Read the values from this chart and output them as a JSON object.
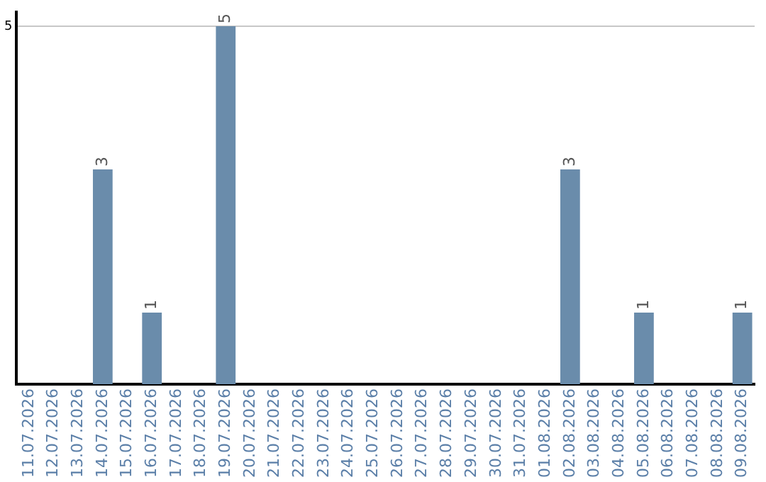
{
  "chart_data": {
    "type": "bar",
    "categories": [
      "11.07.2026",
      "12.07.2026",
      "13.07.2026",
      "14.07.2026",
      "15.07.2026",
      "16.07.2026",
      "17.07.2026",
      "18.07.2026",
      "19.07.2026",
      "20.07.2026",
      "21.07.2026",
      "22.07.2026",
      "23.07.2026",
      "24.07.2026",
      "25.07.2026",
      "26.07.2026",
      "27.07.2026",
      "28.07.2026",
      "29.07.2026",
      "30.07.2026",
      "31.07.2026",
      "01.08.2026",
      "02.08.2026",
      "03.08.2026",
      "04.08.2026",
      "05.08.2026",
      "06.08.2026",
      "07.08.2026",
      "08.08.2026",
      "09.08.2026"
    ],
    "values": [
      0,
      0,
      0,
      3,
      0,
      1,
      0,
      0,
      5,
      0,
      0,
      0,
      0,
      0,
      0,
      0,
      0,
      0,
      0,
      0,
      0,
      0,
      3,
      0,
      0,
      1,
      0,
      0,
      0,
      1
    ],
    "value_labels": [
      null,
      null,
      null,
      "3",
      null,
      "1",
      null,
      null,
      "5",
      null,
      null,
      null,
      null,
      null,
      null,
      null,
      null,
      null,
      null,
      null,
      null,
      null,
      "3",
      null,
      null,
      "1",
      null,
      null,
      null,
      "1"
    ],
    "color": "#6a8cab",
    "ylim": [
      0,
      5.2
    ],
    "yticks": [
      5
    ],
    "grid": "y",
    "legend": false
  }
}
